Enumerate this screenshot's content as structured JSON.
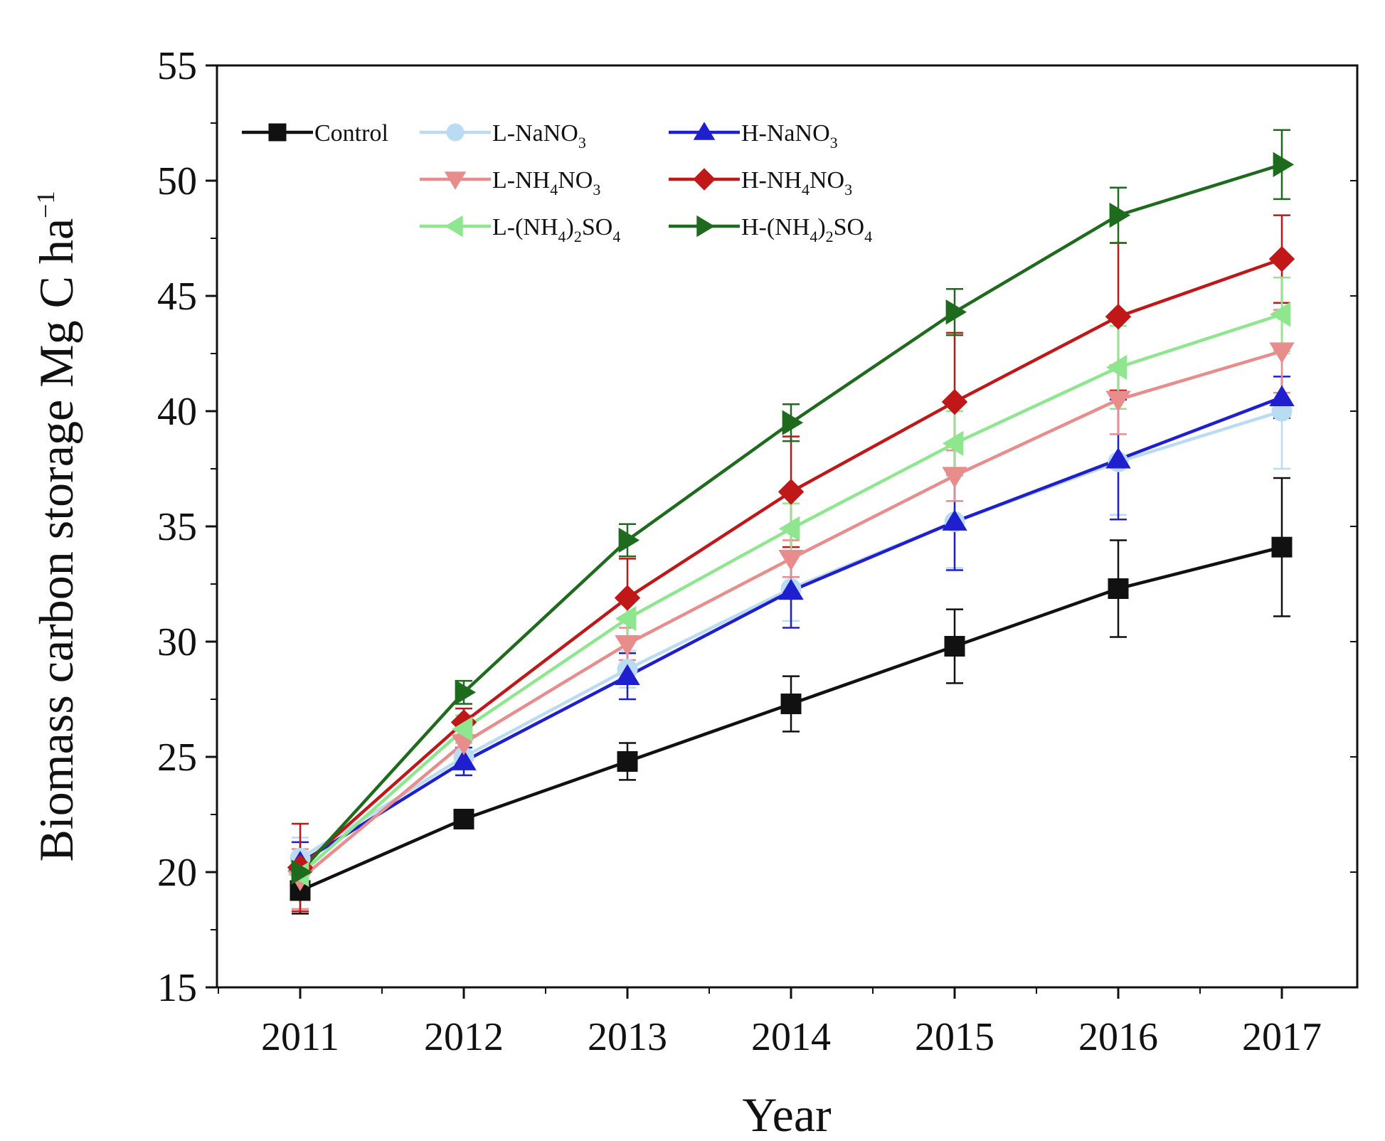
{
  "chart_data": {
    "type": "line",
    "title": "",
    "xlabel": "Year",
    "ylabel": "Biomass carbon storage Mg C ha",
    "ylabel_superscript": "−1",
    "categories": [
      "2011",
      "2012",
      "2013",
      "2014",
      "2015",
      "2016",
      "2017"
    ],
    "ylim": [
      15,
      55
    ],
    "yticks": [
      "15",
      "20",
      "25",
      "30",
      "35",
      "40",
      "45",
      "50",
      "55"
    ],
    "legend_position": "top-left",
    "grid": false,
    "series": [
      {
        "name": "Control",
        "label_parts": [
          {
            "t": "Control"
          }
        ],
        "color": "#111111",
        "marker": "square",
        "values": [
          19.2,
          22.3,
          24.8,
          27.3,
          29.8,
          32.3,
          34.1
        ],
        "errors": [
          1.0,
          0.3,
          0.8,
          1.2,
          1.6,
          2.1,
          3.0
        ]
      },
      {
        "name": "L-NaNO3",
        "label_parts": [
          {
            "t": "L-NaNO"
          },
          {
            "t": "3",
            "sub": true
          }
        ],
        "color": "#b9dcf3",
        "marker": "circle",
        "values": [
          20.6,
          25.0,
          28.8,
          32.3,
          35.2,
          37.8,
          40.0
        ],
        "errors": [
          0.9,
          0.8,
          0.8,
          1.4,
          2.0,
          2.3,
          2.5
        ]
      },
      {
        "name": "H-NaNO3",
        "label_parts": [
          {
            "t": "H-NaNO"
          },
          {
            "t": "3",
            "sub": true
          }
        ],
        "color": "#1f1fd0",
        "marker": "triangle-up",
        "values": [
          20.4,
          24.8,
          28.5,
          32.2,
          35.2,
          37.9,
          40.6
        ],
        "errors": [
          0.9,
          0.6,
          1.0,
          1.6,
          2.1,
          2.6,
          0.9
        ]
      },
      {
        "name": "L-NH4NO3",
        "label_parts": [
          {
            "t": "L-NH"
          },
          {
            "t": "4",
            "sub": true
          },
          {
            "t": "NO"
          },
          {
            "t": "3",
            "sub": true
          }
        ],
        "color": "#e88c8c",
        "marker": "triangle-down",
        "values": [
          19.7,
          25.6,
          29.9,
          33.6,
          37.2,
          40.5,
          42.6
        ],
        "errors": [
          1.3,
          0.6,
          0.7,
          0.8,
          1.1,
          1.5,
          1.8
        ]
      },
      {
        "name": "H-NH4NO3",
        "label_parts": [
          {
            "t": "H-NH"
          },
          {
            "t": "4",
            "sub": true
          },
          {
            "t": "NO"
          },
          {
            "t": "3",
            "sub": true
          }
        ],
        "color": "#c01818",
        "marker": "diamond",
        "values": [
          20.2,
          26.5,
          31.9,
          36.5,
          40.4,
          44.1,
          46.6
        ],
        "errors": [
          1.9,
          0.6,
          1.7,
          2.4,
          3.0,
          3.2,
          1.9
        ]
      },
      {
        "name": "L-(NH4)2SO4",
        "label_parts": [
          {
            "t": "L-(NH"
          },
          {
            "t": "4",
            "sub": true
          },
          {
            "t": ")"
          },
          {
            "t": "2",
            "sub": true
          },
          {
            "t": "SO"
          },
          {
            "t": "4",
            "sub": true
          }
        ],
        "color": "#8ee68e",
        "marker": "triangle-left",
        "values": [
          19.9,
          26.2,
          31.0,
          34.9,
          38.6,
          41.9,
          44.2
        ],
        "errors": [
          0.8,
          0.6,
          0.8,
          1.1,
          1.4,
          1.8,
          1.6
        ]
      },
      {
        "name": "H-(NH4)2SO4",
        "label_parts": [
          {
            "t": "H-(NH"
          },
          {
            "t": "4",
            "sub": true
          },
          {
            "t": ")"
          },
          {
            "t": "2",
            "sub": true
          },
          {
            "t": "SO"
          },
          {
            "t": "4",
            "sub": true
          }
        ],
        "color": "#1e6b1e",
        "marker": "triangle-right",
        "values": [
          20.0,
          27.8,
          34.4,
          39.5,
          44.3,
          48.5,
          50.7
        ],
        "errors": [
          0.8,
          0.5,
          0.7,
          0.8,
          1.0,
          1.2,
          1.5
        ]
      }
    ]
  }
}
